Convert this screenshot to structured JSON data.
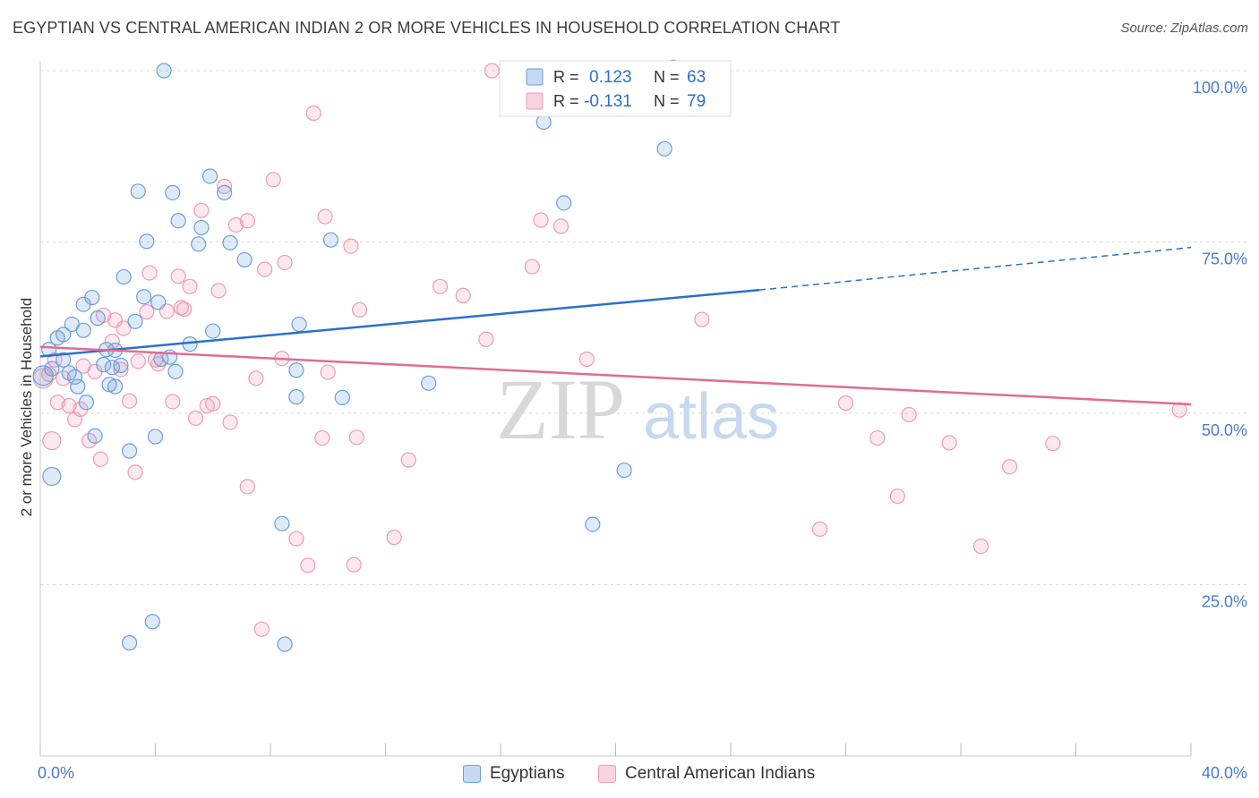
{
  "title": "EGYPTIAN VS CENTRAL AMERICAN INDIAN 2 OR MORE VEHICLES IN HOUSEHOLD CORRELATION CHART",
  "source": "Source: ZipAtlas.com",
  "watermark": {
    "zip": "ZIP",
    "atlas": "atlas"
  },
  "chart_data": {
    "type": "scatter",
    "title": "EGYPTIAN VS CENTRAL AMERICAN INDIAN 2 OR MORE VEHICLES IN HOUSEHOLD CORRELATION CHART",
    "xlabel": "",
    "ylabel": "2 or more Vehicles in Household",
    "xlim": [
      0,
      40
    ],
    "ylim": [
      0,
      104
    ],
    "x_tick_labels": [
      "0.0%",
      "40.0%"
    ],
    "y_ticks": [
      25,
      50,
      75,
      100
    ],
    "y_tick_labels": [
      "25.0%",
      "50.0%",
      "75.0%",
      "100.0%"
    ],
    "grid": true,
    "legend_position": "top-center",
    "colors": {
      "Egyptians": "#6a9fdc",
      "Central American Indians": "#ef9ab5",
      "blue_line": "#2a6fd0",
      "pink_line": "#e06c94",
      "tick_label": "#4a7cc9"
    },
    "legend": [
      {
        "name": "Egyptians",
        "r_label": "R =",
        "r_value": "0.123",
        "n_label": "N =",
        "n_value": "63"
      },
      {
        "name": "Central American Indians",
        "r_label": "R =",
        "r_value": "-0.131",
        "n_label": "N =",
        "n_value": "79"
      }
    ],
    "series": [
      {
        "name": "Egyptians",
        "trend": {
          "x0": 0,
          "y0": 58.3,
          "x1": 25.0,
          "y1": 68.0,
          "dashed_to_x": 40,
          "dashed_to_y": 74.2
        },
        "points": [
          [
            0.1,
            55.5
          ],
          [
            0.3,
            59.3
          ],
          [
            0.4,
            40.8
          ],
          [
            0.4,
            56.5
          ],
          [
            0.6,
            61.0
          ],
          [
            0.8,
            61.5
          ],
          [
            0.8,
            57.8
          ],
          [
            1.0,
            55.9
          ],
          [
            1.1,
            63.0
          ],
          [
            1.2,
            55.3
          ],
          [
            1.3,
            53.9
          ],
          [
            1.5,
            65.9
          ],
          [
            1.5,
            62.1
          ],
          [
            1.6,
            51.6
          ],
          [
            1.8,
            66.9
          ],
          [
            1.9,
            46.7
          ],
          [
            2.0,
            63.9
          ],
          [
            2.2,
            57.1
          ],
          [
            2.3,
            59.3
          ],
          [
            2.4,
            54.2
          ],
          [
            2.5,
            56.7
          ],
          [
            2.6,
            59.2
          ],
          [
            2.6,
            53.9
          ],
          [
            2.8,
            57.0
          ],
          [
            2.9,
            69.9
          ],
          [
            3.1,
            44.5
          ],
          [
            3.1,
            16.5
          ],
          [
            3.3,
            63.4
          ],
          [
            3.4,
            82.4
          ],
          [
            3.6,
            67.0
          ],
          [
            3.7,
            75.1
          ],
          [
            3.9,
            19.6
          ],
          [
            4.0,
            46.6
          ],
          [
            4.1,
            66.2
          ],
          [
            4.2,
            57.9
          ],
          [
            4.3,
            100.0
          ],
          [
            4.5,
            58.2
          ],
          [
            4.6,
            82.2
          ],
          [
            4.7,
            56.1
          ],
          [
            4.8,
            78.1
          ],
          [
            5.2,
            60.1
          ],
          [
            5.5,
            74.7
          ],
          [
            5.6,
            77.1
          ],
          [
            5.9,
            84.6
          ],
          [
            6.0,
            62.0
          ],
          [
            6.4,
            82.2
          ],
          [
            6.6,
            74.9
          ],
          [
            7.1,
            72.4
          ],
          [
            8.4,
            33.9
          ],
          [
            8.5,
            16.3
          ],
          [
            8.9,
            56.3
          ],
          [
            8.9,
            52.4
          ],
          [
            9.0,
            63.0
          ],
          [
            10.1,
            75.3
          ],
          [
            10.5,
            52.3
          ],
          [
            13.5,
            54.4
          ],
          [
            17.0,
            100.0
          ],
          [
            17.5,
            92.5
          ],
          [
            18.2,
            80.7
          ],
          [
            19.2,
            33.8
          ],
          [
            20.3,
            41.7
          ],
          [
            21.7,
            88.6
          ],
          [
            22.0,
            100.5
          ]
        ]
      },
      {
        "name": "Central American Indians",
        "trend": {
          "x0": 0,
          "y0": 59.7,
          "x1": 40,
          "y1": 51.3
        },
        "points": [
          [
            0.1,
            55.1
          ],
          [
            0.3,
            55.7
          ],
          [
            0.4,
            46.0
          ],
          [
            0.5,
            57.8
          ],
          [
            0.6,
            51.6
          ],
          [
            0.8,
            55.1
          ],
          [
            1.0,
            51.1
          ],
          [
            1.2,
            49.1
          ],
          [
            1.4,
            50.6
          ],
          [
            1.5,
            56.9
          ],
          [
            1.7,
            46.0
          ],
          [
            1.9,
            56.1
          ],
          [
            2.1,
            43.3
          ],
          [
            2.2,
            64.3
          ],
          [
            2.5,
            60.5
          ],
          [
            2.6,
            63.6
          ],
          [
            2.8,
            56.4
          ],
          [
            2.9,
            62.4
          ],
          [
            3.1,
            51.8
          ],
          [
            3.3,
            41.4
          ],
          [
            3.4,
            57.6
          ],
          [
            3.7,
            64.8
          ],
          [
            3.8,
            70.5
          ],
          [
            4.0,
            57.8
          ],
          [
            4.1,
            57.2
          ],
          [
            4.4,
            64.9
          ],
          [
            4.6,
            51.7
          ],
          [
            4.8,
            70.0
          ],
          [
            4.9,
            65.4
          ],
          [
            5.0,
            65.2
          ],
          [
            5.2,
            68.5
          ],
          [
            5.4,
            49.3
          ],
          [
            5.6,
            79.6
          ],
          [
            5.8,
            51.1
          ],
          [
            6.0,
            51.4
          ],
          [
            6.2,
            67.9
          ],
          [
            6.4,
            83.1
          ],
          [
            6.6,
            48.7
          ],
          [
            6.8,
            77.5
          ],
          [
            7.2,
            78.1
          ],
          [
            7.2,
            39.3
          ],
          [
            7.5,
            55.1
          ],
          [
            7.7,
            18.5
          ],
          [
            7.8,
            71.0
          ],
          [
            8.1,
            84.1
          ],
          [
            8.4,
            58.0
          ],
          [
            8.5,
            72.0
          ],
          [
            8.9,
            31.7
          ],
          [
            9.3,
            27.8
          ],
          [
            9.5,
            93.8
          ],
          [
            9.8,
            46.4
          ],
          [
            9.9,
            78.7
          ],
          [
            10.0,
            56.0
          ],
          [
            10.8,
            74.4
          ],
          [
            10.9,
            27.9
          ],
          [
            11.0,
            46.5
          ],
          [
            11.1,
            65.1
          ],
          [
            12.3,
            31.9
          ],
          [
            12.8,
            43.2
          ],
          [
            13.9,
            68.5
          ],
          [
            14.7,
            67.2
          ],
          [
            15.5,
            60.8
          ],
          [
            15.7,
            100.0
          ],
          [
            17.1,
            71.4
          ],
          [
            17.4,
            78.2
          ],
          [
            18.1,
            77.3
          ],
          [
            19.0,
            57.9
          ],
          [
            21.8,
            100.0
          ],
          [
            23.0,
            63.7
          ],
          [
            27.1,
            33.1
          ],
          [
            28.0,
            51.5
          ],
          [
            29.1,
            46.4
          ],
          [
            29.8,
            37.9
          ],
          [
            30.2,
            49.8
          ],
          [
            31.6,
            45.7
          ],
          [
            32.7,
            30.6
          ],
          [
            33.7,
            42.2
          ],
          [
            35.2,
            45.6
          ],
          [
            39.6,
            50.5
          ]
        ]
      }
    ]
  }
}
